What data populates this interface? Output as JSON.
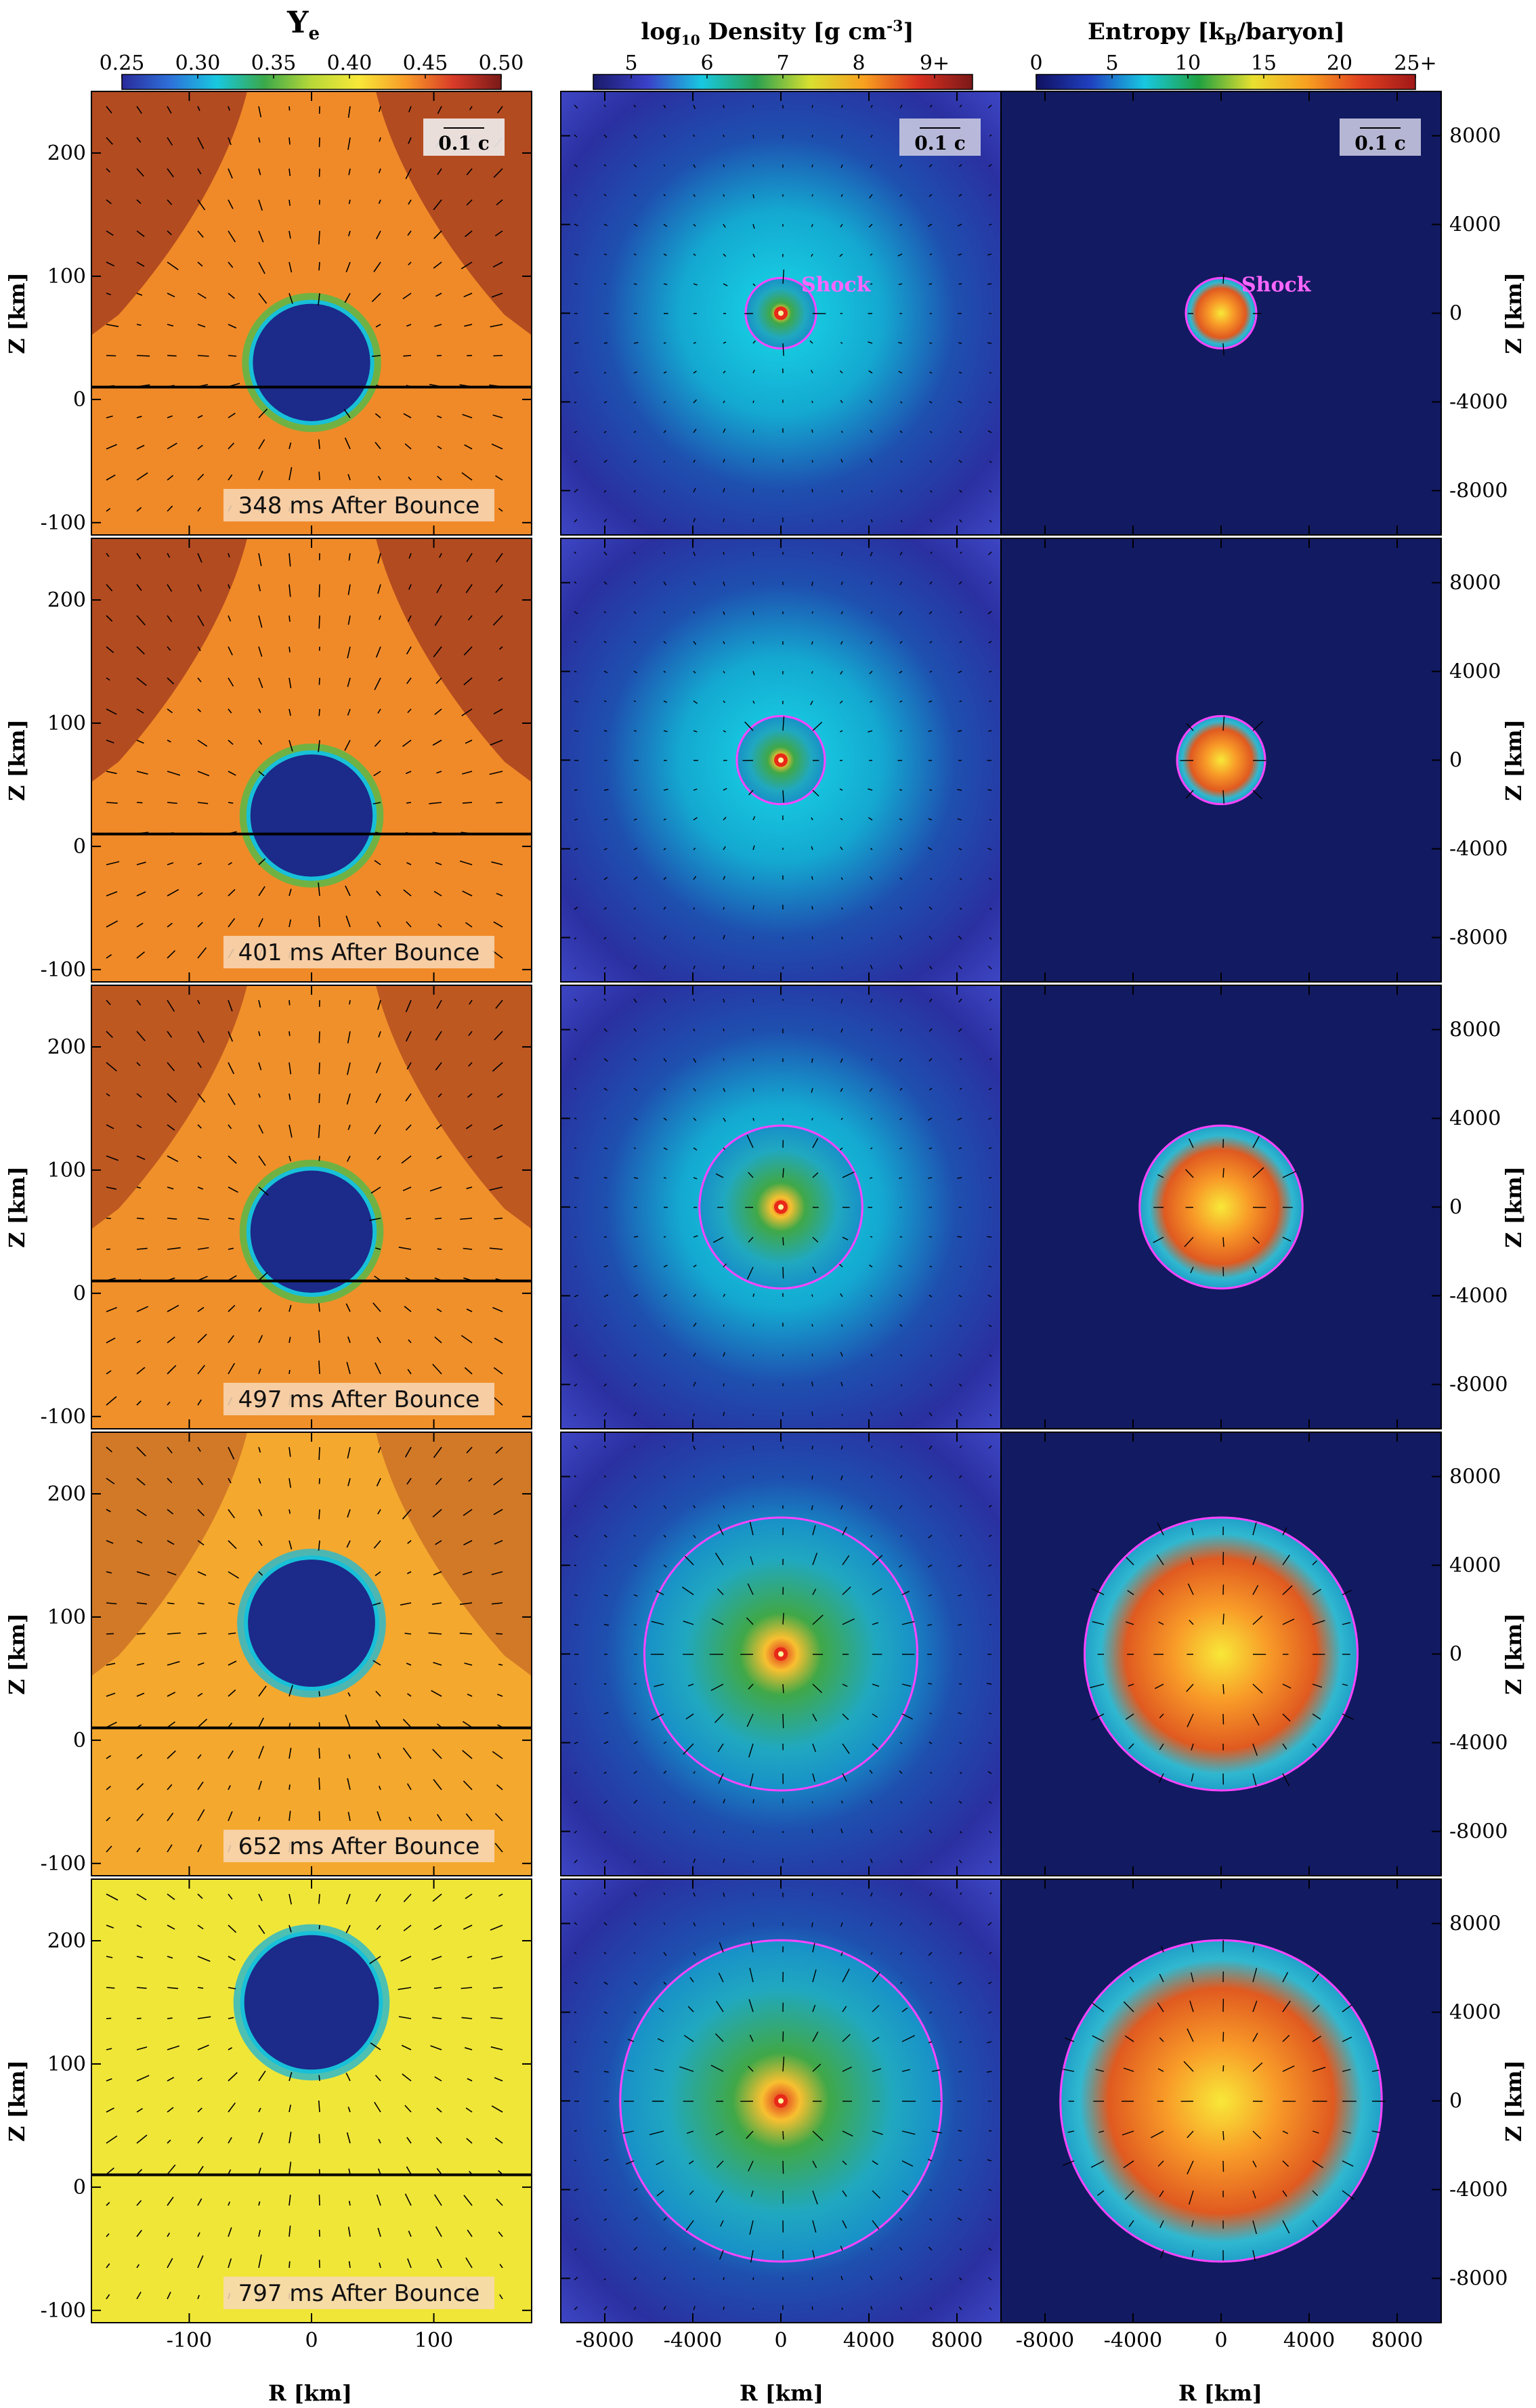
{
  "figure": {
    "colorbars": {
      "ye": {
        "title": "Y",
        "title_sub": "e",
        "ticks": [
          "0.25",
          "0.30",
          "0.35",
          "0.40",
          "0.45",
          "0.50"
        ],
        "colors": [
          "#2a2a9a",
          "#2e6fd8",
          "#18c8e0",
          "#3aa84a",
          "#b8d838",
          "#f8e838",
          "#f89a28",
          "#d83a28",
          "#7a1a18"
        ]
      },
      "density": {
        "title_pre": "log",
        "title_sub": "10",
        "title_post": " Density [g cm",
        "title_sup": "-3",
        "title_end": "]",
        "ticks": [
          "5",
          "6",
          "7",
          "8",
          "9+"
        ],
        "colors": [
          "#1a1a6a",
          "#3a40c8",
          "#18c8e0",
          "#2aa050",
          "#d8e030",
          "#f8a020",
          "#d83020",
          "#7a1818"
        ]
      },
      "entropy": {
        "title_pre": "Entropy [k",
        "title_sub": "B",
        "title_post": "/baryon]",
        "ticks": [
          "0",
          "5",
          "10",
          "15",
          "20",
          "25+"
        ],
        "colors": [
          "#101060",
          "#2040c0",
          "#18c8e0",
          "#20a040",
          "#e8e030",
          "#f8a020",
          "#e04020",
          "#a01818"
        ]
      }
    },
    "ye_panel_axes": {
      "r_ticks": [
        "-100",
        "0",
        "100"
      ],
      "z_ticks": [
        "-100",
        "0",
        "100",
        "200"
      ],
      "xlabel": "R [km]",
      "ylabel": "Z [km]"
    },
    "large_panel_axes": {
      "r_ticks": [
        "-8000",
        "-4000",
        "0",
        "4000",
        "8000"
      ],
      "z_ticks": [
        "-8000",
        "-4000",
        "0",
        "4000",
        "8000"
      ],
      "xlabel": "R [km]",
      "ylabel": "Z [km]"
    },
    "annotations": {
      "velocity_scale": "0.1 c",
      "shock": "Shock"
    },
    "rows": [
      {
        "time_label": "348 ms After Bounce",
        "pns_center_z_km": 30,
        "pns_radius_km": 48,
        "ye_background": "#f08a28",
        "shock_radius_km": 1600
      },
      {
        "time_label": "401 ms After Bounce",
        "pns_center_z_km": 25,
        "pns_radius_km": 50,
        "ye_background": "#f08a28",
        "shock_radius_km": 2000
      },
      {
        "time_label": "497 ms After Bounce",
        "pns_center_z_km": 50,
        "pns_radius_km": 50,
        "ye_background": "#f0902a",
        "shock_radius_km": 3700
      },
      {
        "time_label": "652 ms After Bounce",
        "pns_center_z_km": 95,
        "pns_radius_km": 52,
        "ye_background": "#f4a82e",
        "shock_radius_km": 6200
      },
      {
        "time_label": "797 ms After Bounce",
        "pns_center_z_km": 150,
        "pns_radius_km": 55,
        "ye_background": "#f0e638",
        "shock_radius_km": 7300
      }
    ]
  }
}
